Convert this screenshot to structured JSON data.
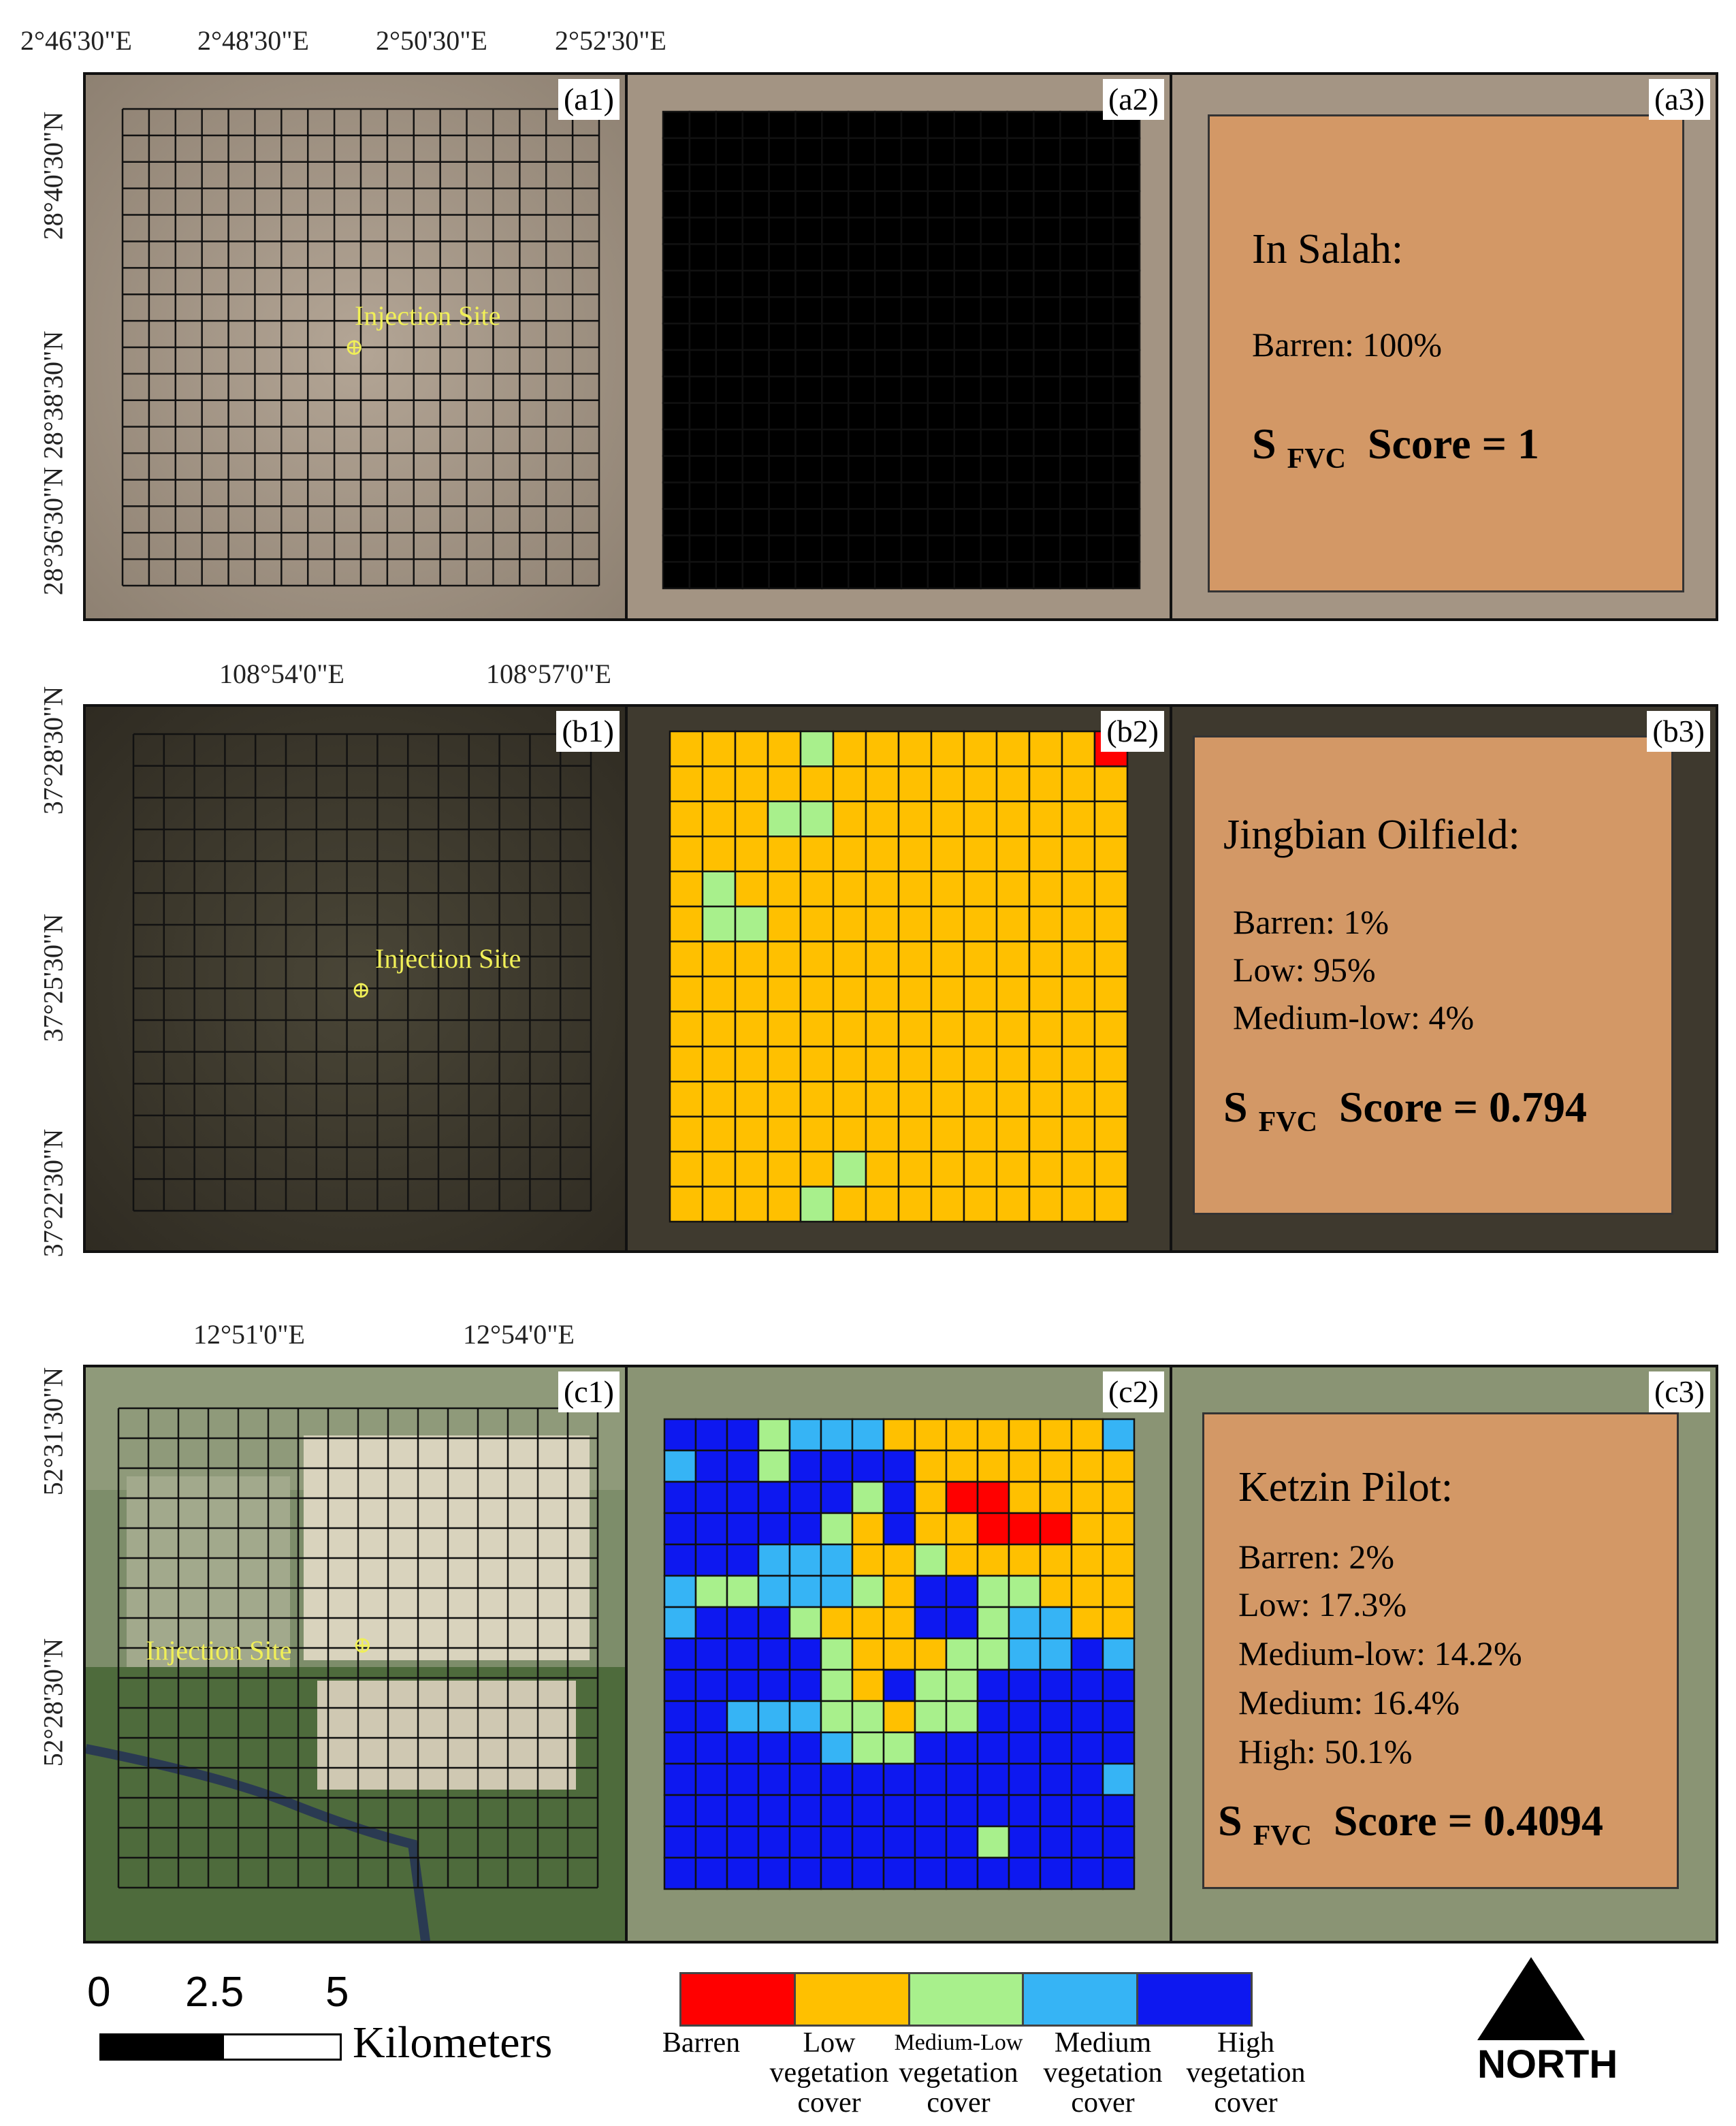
{
  "rows": [
    {
      "id": "a",
      "top_ticks": [
        "2°46'30\"E",
        "2°48'30\"E",
        "2°50'30\"E",
        "2°52'30\"E"
      ],
      "side_ticks": [
        "28°40'30\"N",
        "28°38'30\"N",
        "28°36'30\"N"
      ],
      "panel_labels": [
        "(a1)",
        "(a2)",
        "(a3)"
      ],
      "injection_label": "Injection Site",
      "site_name": "In Salah:",
      "stats": [
        "Barren: 100%"
      ],
      "score_label": "S",
      "score_sub": "FVC",
      "score_text": "Score = 1",
      "grid_size": 18,
      "classes": [
        "RRRRRRRRRRRRRRRRRR",
        "RRRRRRRRRRRRRRRRRR",
        "RRRRRRRRRRRRRRRRRR",
        "RRRRRRRRRRRRRRRRRR",
        "RRRRRRRRRRRRRRRRRR",
        "RRRRRRRRRRRRRRRRRR",
        "RRRRRRRRRRRRRRRRRR",
        "RRRRRRRRRRRRRRRRRR",
        "RRRRRRRRRRRRRRRRRR",
        "RRRRRRRRRRRRRRRRRR",
        "RRRRRRRRRRRRRRRRRR",
        "RRRRRRRRRRRRRRRRRR",
        "RRRRRRRRRRRRRRRRRR",
        "RRRRRRRRRRRRRRRRRR",
        "RRRRRRRRRRRRRRRRRR",
        "RRRRRRRRRRRRRRRRRR",
        "RRRRRRRRRRRRRRRRRR",
        "RRRRRRRRRRRRRRRRRR"
      ]
    },
    {
      "id": "b",
      "top_ticks": [
        "108°54'0\"E",
        "108°57'0\"E"
      ],
      "side_ticks": [
        "37°28'30\"N",
        "37°25'30\"N",
        "37°22'30\"N"
      ],
      "panel_labels": [
        "(b1)",
        "(b2)",
        "(b3)"
      ],
      "injection_label": "Injection Site",
      "site_name": "Jingbian Oilfield:",
      "stats": [
        "Barren: 1%",
        "Low:  95%",
        "Medium-low: 4%"
      ],
      "score_label": "S",
      "score_sub": "FVC",
      "score_text": "Score = 0.794",
      "grid_size": 14,
      "classes": [
        "LLLLMLLLLLLLLB",
        "LLLLLLLLLLLLLL",
        "LLLMMLLLLLLLLL",
        "LLLLLLLLLLLLLL",
        "LMLLLLLLLLLLLL",
        "LMMLLLLLLLLLLL",
        "LLLLLLLLLLLLLL",
        "LLLLLLLLLLLLLL",
        "LLLLLLLLLLLLLL",
        "LLLLLLLLLLLLLL",
        "LLLLLLLLLLLLLL",
        "LLLLLLLLLLLLLL",
        "LLLLLMLLLLLLLL",
        "LLLLMLLLLLLLLL"
      ]
    },
    {
      "id": "c",
      "top_ticks": [
        "12°51'0\"E",
        "12°54'0\"E"
      ],
      "side_ticks": [
        "52°31'30\"N",
        "52°28'30\"N"
      ],
      "panel_labels": [
        "(c1)",
        "(c2)",
        "(c3)"
      ],
      "injection_label": "Injection Site",
      "site_name": "Ketzin Pilot:",
      "stats": [
        "Barren: 2%",
        "Low: 17.3%",
        "Medium-low: 14.2%",
        "Medium: 16.4%",
        "High: 50.1%"
      ],
      "score_label": "S",
      "score_sub": "FVC",
      "score_text": "Score = 0.4094",
      "grid_size": 15,
      "classes": [
        "HHHMEEELLLLLLLE",
        "EHHMHHHHLLLLLLL",
        "HHHHHHMHLBBLLLL",
        "HHHHHMLHLLBBBLL",
        "HHHEEELLMLLLLLL",
        "EMMEEEMLHHMMLLL",
        "EHHHMLLLHHMEELL",
        "HHHHHMLLLMMEEHE",
        "HHHHHMLHMMHHHHH",
        "HHEEEMMLMMHHHHH",
        "HHHHHEMMHHHHHHH",
        "HHHHHHHHHHHHHHE",
        "HHHHHHHHHHHHHHH",
        "HHHHHHHHHHMHHHH",
        "HHHHHHHHHHHHHHH"
      ]
    }
  ],
  "class_colors": {
    "B": "#ff0000",
    "L": "#ffc000",
    "M": "#a8f08c",
    "E": "#36b4f5",
    "H": "#0d18f0"
  },
  "legend": {
    "colors": [
      "#ff0000",
      "#ffc000",
      "#a8f08c",
      "#36b4f5",
      "#0d18f0"
    ],
    "labels": [
      [
        "Barren"
      ],
      [
        "Low",
        "vegetation",
        "cover"
      ],
      [
        "Medium-Low",
        "vegetation",
        "cover"
      ],
      [
        "Medium",
        "vegetation",
        "cover"
      ],
      [
        "High",
        "vegetation",
        "cover"
      ]
    ]
  },
  "scale_bar": {
    "ticks": [
      "0",
      "2.5",
      "5"
    ],
    "unit": "Kilometers"
  },
  "north_label": "NORTH"
}
